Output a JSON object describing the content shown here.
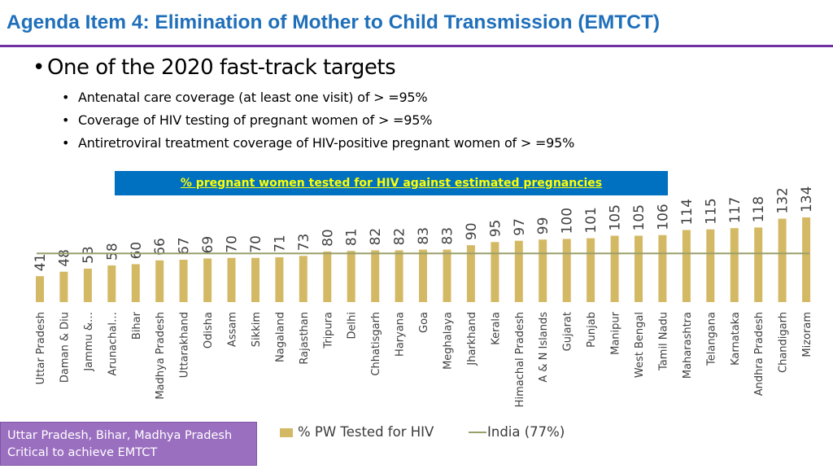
{
  "header": {
    "title": "Agenda Item 4: Elimination of Mother to Child Transmission (EMTCT)"
  },
  "targets": {
    "main": "One of the 2020 fast-track targets",
    "items": [
      "Antenatal care coverage (at least one visit) of > =95%",
      "Coverage of HIV testing of pregnant women of > =95%",
      "Antiretroviral treatment coverage of HIV-positive pregnant women of > =95%"
    ]
  },
  "chart_data": {
    "type": "bar",
    "title": "% pregnant women tested for HIV against estimated pregnancies",
    "categories": [
      "Uttar Pradesh",
      "Daman & Diu",
      "Jammu &…",
      "Arunachal…",
      "Bihar",
      "Madhya Pradesh",
      "Uttarakhand",
      "Odisha",
      "Assam",
      "Sikkim",
      "Nagaland",
      "Rajasthan",
      "Tripura",
      "Delhi",
      "Chhatisgarh",
      "Haryana",
      "Goa",
      "Meghalaya",
      "Jharkhand",
      "Kerala",
      "Himachal Pradesh",
      "A & N Islands",
      "Gujarat",
      "Punjab",
      "Manipur",
      "West Bengal",
      "Tamil Nadu",
      "Maharashtra",
      "Telangana",
      "Karnataka",
      "Andhra Pradesh",
      "Chandigarh",
      "Mizoram"
    ],
    "series": [
      {
        "name": "% PW Tested for HIV",
        "type": "bar",
        "color": "#d4b965",
        "values": [
          41,
          48,
          53,
          58,
          60,
          66,
          67,
          69,
          70,
          70,
          71,
          73,
          80,
          81,
          82,
          82,
          83,
          83,
          90,
          95,
          97,
          99,
          100,
          101,
          105,
          105,
          106,
          114,
          115,
          117,
          118,
          132,
          134
        ]
      },
      {
        "name": "India (77%)",
        "type": "line",
        "color": "#9aa06a",
        "value": 77
      }
    ],
    "ylim": [
      0,
      134
    ],
    "grid": false,
    "legend": "bottom"
  },
  "callout": {
    "lines": [
      "Uttar Pradesh, Bihar, Madhya Pradesh",
      "Critical to achieve EMTCT"
    ]
  }
}
